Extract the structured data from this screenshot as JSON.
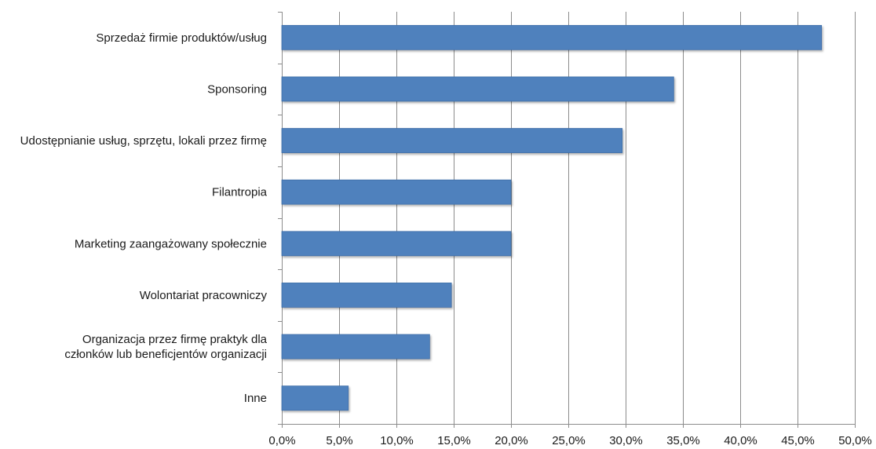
{
  "chart_data": {
    "type": "bar",
    "orientation": "horizontal",
    "title": "",
    "xlabel": "",
    "ylabel": "",
    "categories": [
      [
        "Sprzedaż firmie produktów/usług"
      ],
      [
        "Sponsoring"
      ],
      [
        "Udostępnianie usług, sprzętu, lokali przez firmę"
      ],
      [
        "Filantropia"
      ],
      [
        "Marketing zaangażowany społecznie"
      ],
      [
        "Wolontariat pracowniczy"
      ],
      [
        "Organizacja przez firmę praktyk dla",
        "członków lub beneficjentów organizacji"
      ],
      [
        "Inne"
      ]
    ],
    "values": [
      47.1,
      34.2,
      29.7,
      20.0,
      20.0,
      14.8,
      12.9,
      5.8
    ],
    "xlim": [
      0,
      50
    ],
    "x_ticks": [
      "0,0%",
      "5,0%",
      "10,0%",
      "15,0%",
      "20,0%",
      "25,0%",
      "30,0%",
      "35,0%",
      "40,0%",
      "45,0%",
      "50,0%"
    ],
    "grid": true,
    "legend": "none",
    "bar_color": "#4F81BD",
    "bar_edge_color": "#3f6ea8"
  }
}
